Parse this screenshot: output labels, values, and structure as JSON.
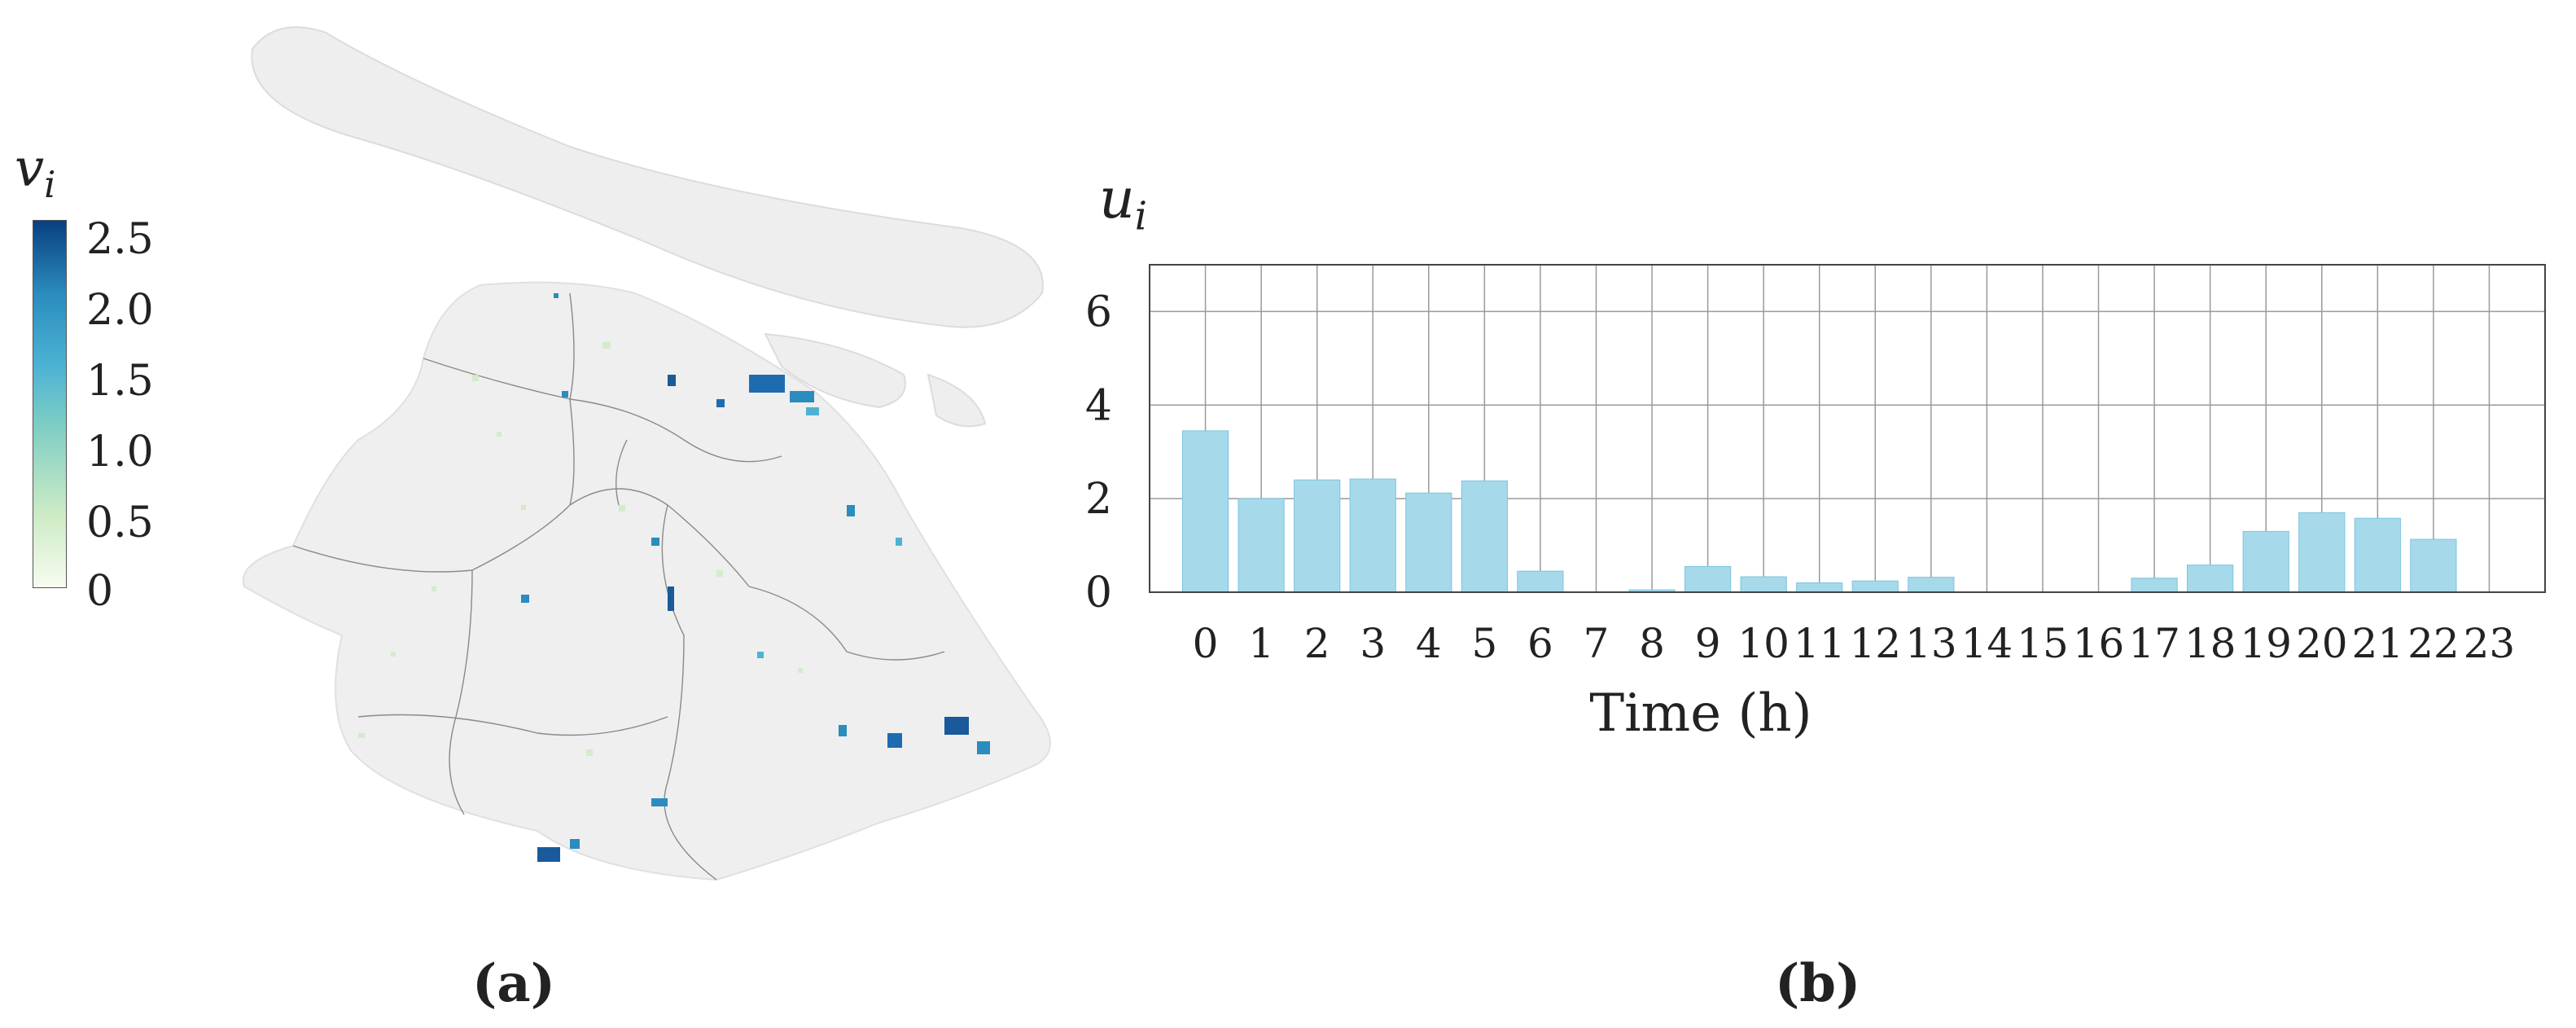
{
  "colorbar": {
    "title": "v_i",
    "ticks": [
      "2.5",
      "2.0",
      "1.5",
      "1.0",
      "0.5",
      "0"
    ],
    "colors": [
      "#f7fcf0",
      "#ccebc5",
      "#7bccc4",
      "#4eb3d3",
      "#2b8cbe",
      "#084081"
    ]
  },
  "panels": {
    "a": "(a)",
    "b": "(b)"
  },
  "chart_data": {
    "type": "bar",
    "title": "",
    "xlabel": "Time (h)",
    "ylabel": "u_i",
    "categories": [
      "0",
      "1",
      "2",
      "3",
      "4",
      "5",
      "6",
      "7",
      "8",
      "9",
      "10",
      "11",
      "12",
      "13",
      "14",
      "15",
      "16",
      "17",
      "18",
      "19",
      "20",
      "21",
      "22",
      "23"
    ],
    "values": [
      3.45,
      2.0,
      2.4,
      2.42,
      2.12,
      2.38,
      0.45,
      0.0,
      0.05,
      0.55,
      0.33,
      0.2,
      0.24,
      0.32,
      0.0,
      0.0,
      0.0,
      0.3,
      0.58,
      1.3,
      1.7,
      1.58,
      1.13,
      0.0
    ],
    "yticks": [
      "0",
      "2",
      "4",
      "6"
    ],
    "ylim": [
      0,
      7
    ],
    "grid": true,
    "bar_color": "#a6d9ea",
    "bar_edge": "#7fc3dc"
  }
}
